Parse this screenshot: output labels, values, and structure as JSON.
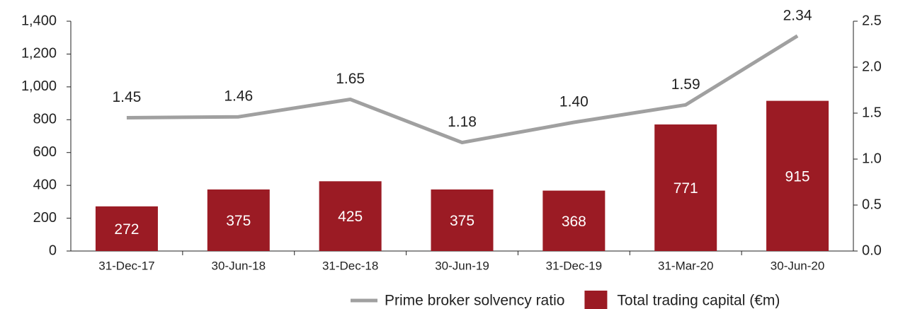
{
  "chart_data": {
    "type": "bar",
    "categories": [
      "31-Dec-17",
      "30-Jun-18",
      "31-Dec-18",
      "30-Jun-19",
      "31-Dec-19",
      "31-Mar-20",
      "30-Jun-20"
    ],
    "series": [
      {
        "name": "Prime broker solvency ratio",
        "type": "line",
        "axis": "y2",
        "color": "#a0a0a0",
        "values": [
          1.45,
          1.46,
          1.65,
          1.18,
          1.4,
          1.59,
          2.34
        ],
        "value_labels": [
          "1.45",
          "1.46",
          "1.65",
          "1.18",
          "1.40",
          "1.59",
          "2.34"
        ]
      },
      {
        "name": "Total trading capital (€m)",
        "type": "bar",
        "color": "#9b1b24",
        "values": [
          272,
          375,
          425,
          375,
          368,
          771,
          915
        ]
      }
    ],
    "ylim": [
      0,
      1400
    ],
    "yticks": [
      0,
      200,
      400,
      600,
      800,
      {
        "value": 1000,
        "label": "1,000"
      },
      {
        "value": 1200,
        "label": "1,200"
      },
      {
        "value": 1400,
        "label": "1,400"
      }
    ],
    "y2lim": [
      0,
      2.5
    ],
    "y2ticks": [
      {
        "value": 0,
        "label": "0.0"
      },
      0.5,
      {
        "value": 1,
        "label": "1.0"
      },
      1.5,
      {
        "value": 2,
        "label": "2.0"
      },
      2.5
    ],
    "legend": "bottom"
  }
}
